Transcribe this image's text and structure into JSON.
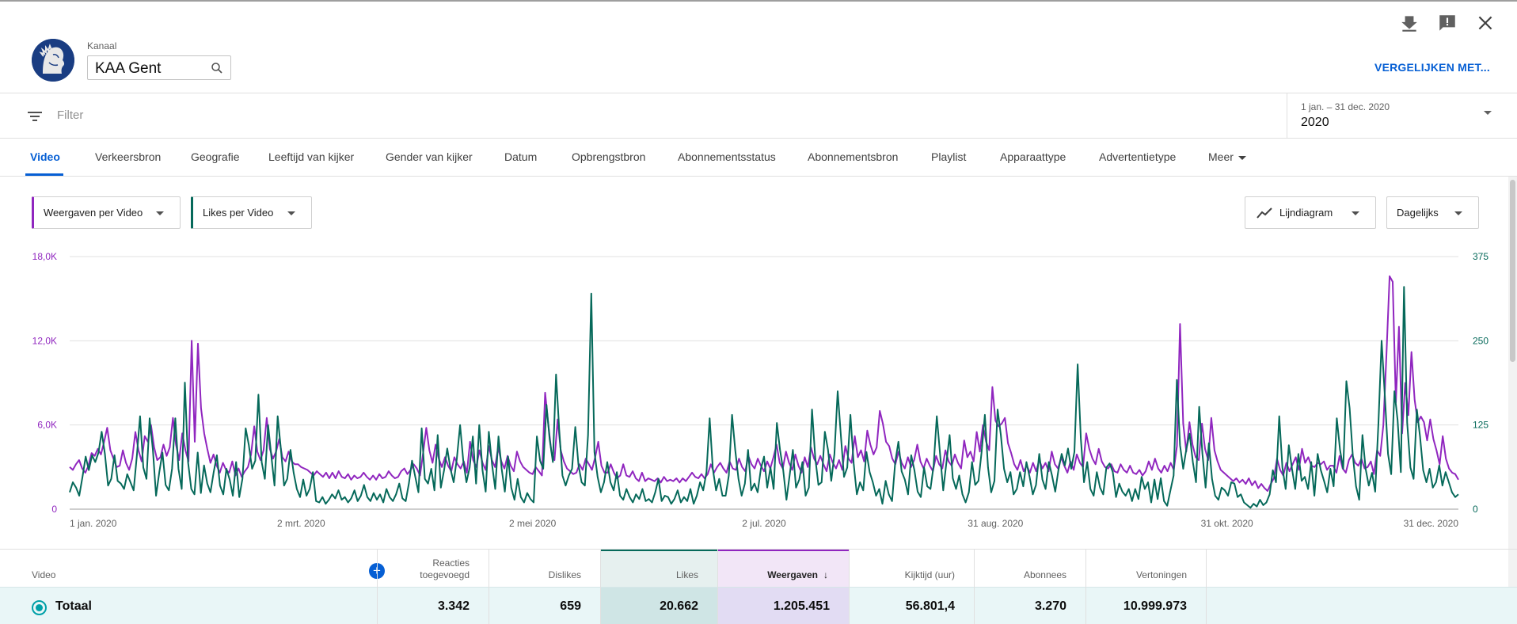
{
  "header": {
    "channel_label": "Kanaal",
    "channel_name": "KAA Gent",
    "compare_label": "VERGELIJKEN MET...",
    "icons": [
      "download-icon",
      "feedback-icon",
      "close-icon"
    ]
  },
  "filter": {
    "placeholder": "Filter",
    "date_range": "1 jan. – 31 dec. 2020",
    "date_value": "2020"
  },
  "tabs": [
    {
      "label": "Video",
      "active": true
    },
    {
      "label": "Verkeersbron"
    },
    {
      "label": "Geografie"
    },
    {
      "label": "Leeftijd van kijker"
    },
    {
      "label": "Gender van kijker"
    },
    {
      "label": "Datum"
    },
    {
      "label": "Opbrengstbron"
    },
    {
      "label": "Abonnementsstatus"
    },
    {
      "label": "Abonnementsbron"
    },
    {
      "label": "Playlist"
    },
    {
      "label": "Apparaattype"
    },
    {
      "label": "Advertentietype"
    },
    {
      "label": "Meer"
    }
  ],
  "controls": {
    "metric1": "Weergaven per Video",
    "metric2": "Likes per Video",
    "chart_type": "Lijndiagram",
    "period": "Dagelijks"
  },
  "colors": {
    "views": "#9026bf",
    "likes": "#06695a",
    "accent": "#065fd4"
  },
  "chart_data": {
    "type": "line",
    "x_tick_labels": [
      "1 jan. 2020",
      "2 mrt. 2020",
      "2 mei 2020",
      "2 jul. 2020",
      "31 aug. 2020",
      "31 okt. 2020",
      "31 dec. 2020"
    ],
    "y_left_ticks": [
      "0",
      "6,0K",
      "12,0K",
      "18,0K"
    ],
    "y_left_range": [
      0,
      18000
    ],
    "y_right_ticks": [
      "0",
      "125",
      "250",
      "375"
    ],
    "y_right_range": [
      0,
      375
    ],
    "grid": true,
    "series": [
      {
        "axis": "left",
        "values": [
          3000,
          2800,
          3200,
          3500,
          2900,
          2600,
          3100,
          4000,
          3800,
          4300,
          3900,
          4800,
          5800,
          4200,
          3600,
          3000,
          3100,
          4200,
          3300,
          2800,
          3600,
          5500,
          4200,
          3400,
          5200,
          4800,
          6000,
          4400,
          3500,
          3700,
          4600,
          3800,
          4400,
          6500,
          4600,
          3500,
          5400,
          4200,
          3400,
          12000,
          4800,
          11800,
          7200,
          5400,
          4300,
          3300,
          3900,
          3100,
          2600,
          3300,
          2800,
          2600,
          3400,
          2400,
          2900,
          2300,
          2700,
          3000,
          3900,
          5900,
          4100,
          3500,
          4200,
          6500,
          4300,
          3600,
          4100,
          5000,
          3700,
          3400,
          4100,
          3400,
          3200,
          3200,
          3000,
          2900,
          2800,
          2600,
          2400,
          2700,
          2500,
          2300,
          2600,
          2200,
          2600,
          2200,
          2700,
          2300,
          2200,
          2500,
          2100,
          2400,
          2200,
          2300,
          2600,
          2300,
          2100,
          2400,
          2100,
          2500,
          2200,
          2300,
          2700,
          2400,
          2200,
          2300,
          2700,
          2900,
          2500,
          2800,
          3200,
          2900,
          2400,
          4000,
          5800,
          4200,
          3300,
          4600,
          3600,
          3000,
          3700,
          3100,
          2700,
          3700,
          3200,
          2900,
          3400,
          2600,
          4800,
          3500,
          3000,
          4200,
          3300,
          2800,
          4500,
          3500,
          3000,
          4400,
          3400,
          2900,
          3800,
          3100,
          2700,
          4100,
          3400,
          3000,
          2800,
          2600,
          2500,
          3000,
          2700,
          2400,
          8300,
          6100,
          4100,
          3500,
          6400,
          4200,
          3400,
          2900,
          2700,
          2500,
          2600,
          3200,
          2800,
          3600,
          3200,
          2800,
          3700,
          4800,
          3100,
          2600,
          2600,
          3200,
          2600,
          2200,
          2400,
          3200,
          2400,
          2300,
          2700,
          2200,
          2000,
          2600,
          2000,
          2200,
          2100,
          2000,
          2200,
          1900,
          2300,
          2000,
          2100,
          2000,
          2200,
          1900,
          2200,
          2000,
          2300,
          2600,
          2300,
          2200,
          2500,
          2200,
          2500,
          3200,
          2600,
          3000,
          3300,
          2900,
          2600,
          3400,
          2900,
          2800,
          3600,
          3000,
          2700,
          3800,
          3200,
          2900,
          3600,
          3100,
          2700,
          3400,
          2900,
          3700,
          4600,
          3300,
          2900,
          4100,
          3300,
          2800,
          3900,
          3100,
          2600,
          3700,
          3000,
          4400,
          3600,
          3200,
          3800,
          3200,
          2700,
          3900,
          3300,
          2900,
          3500,
          2800,
          4500,
          3600,
          3300,
          5200,
          3700,
          4200,
          3400,
          5600,
          4600,
          3900,
          4400,
          7000,
          6100,
          4800,
          4500,
          3600,
          3200,
          4100,
          3300,
          2900,
          3700,
          3000,
          3500,
          4600,
          3400,
          2900,
          3600,
          3100,
          2700,
          3800,
          3200,
          2900,
          4200,
          3400,
          3100,
          3900,
          3300,
          2900,
          4900,
          3700,
          4100,
          3400,
          5500,
          4100,
          6000,
          4800,
          4200,
          8700,
          6300,
          5900,
          6100,
          6500,
          4700,
          4000,
          3200,
          2800,
          3500,
          2700,
          3100,
          2600,
          3300,
          2700,
          3500,
          2900,
          3300,
          2700,
          4100,
          3200,
          2900,
          3700,
          3100,
          2600,
          3400,
          2800,
          3900,
          3300,
          3000,
          5400,
          4300,
          3600,
          3200,
          4300,
          3400,
          3000,
          2900,
          3200,
          2700,
          2600,
          3200,
          2800,
          2600,
          3100,
          2600,
          2500,
          2800,
          2400,
          2700,
          3400,
          2800,
          3600,
          2900,
          2600,
          3100,
          2700,
          3300,
          2800,
          4500,
          13200,
          6100,
          4100,
          6200,
          4600,
          3700,
          3500,
          6100,
          4300,
          3500,
          6500,
          4200,
          3400,
          2800,
          2600,
          2400,
          2200,
          2000,
          2200,
          1900,
          2100,
          1800,
          2200,
          1700,
          2000,
          1500,
          1800,
          1500,
          1300,
          1800,
          2200,
          3600,
          2800,
          2400,
          3300,
          2700,
          3200,
          3700,
          2800,
          4300,
          3300,
          3700,
          3100,
          3000,
          3300,
          3200,
          3400,
          2800,
          3100,
          3100,
          2600,
          3800,
          2900,
          2600,
          3500,
          3900,
          3300,
          3100,
          3600,
          2900,
          3000,
          3400,
          2500,
          4200,
          3800,
          6000,
          11000,
          16600,
          16200,
          7600,
          13000,
          5400,
          9000,
          6700,
          11200,
          7800,
          6200,
          6600,
          6200,
          4900,
          6400,
          5000,
          4200,
          3200,
          5200,
          3600,
          2900,
          2600,
          2500,
          2100
        ]
      },
      {
        "axis": "right",
        "values": [
          25,
          40,
          32,
          20,
          48,
          78,
          58,
          80,
          70,
          84,
          115,
          82,
          35,
          45,
          80,
          42,
          38,
          30,
          52,
          40,
          28,
          80,
          138,
          62,
          45,
          135,
          88,
          20,
          55,
          84,
          36,
          28,
          60,
          135,
          60,
          30,
          188,
          70,
          30,
          22,
          84,
          24,
          65,
          38,
          25,
          55,
          80,
          35,
          22,
          60,
          44,
          20,
          70,
          18,
          45,
          120,
          95,
          60,
          72,
          170,
          70,
          45,
          125,
          80,
          35,
          138,
          90,
          35,
          45,
          88,
          54,
          30,
          18,
          44,
          20,
          30,
          55,
          12,
          10,
          18,
          8,
          14,
          22,
          16,
          28,
          14,
          18,
          10,
          16,
          28,
          12,
          20,
          36,
          18,
          12,
          24,
          14,
          22,
          10,
          30,
          18,
          12,
          22,
          38,
          16,
          12,
          38,
          72,
          48,
          25,
          120,
          45,
          38,
          60,
          28,
          110,
          32,
          58,
          90,
          60,
          40,
          75,
          125,
          72,
          40,
          62,
          108,
          38,
          125,
          58,
          26,
          115,
          66,
          30,
          108,
          60,
          26,
          78,
          32,
          14,
          45,
          18,
          10,
          24,
          15,
          10,
          108,
          72,
          60,
          155,
          104,
          70,
          200,
          118,
          50,
          35,
          50,
          60,
          122,
          66,
          40,
          35,
          110,
          320,
          85,
          48,
          25,
          40,
          70,
          40,
          28,
          55,
          20,
          14,
          30,
          18,
          10,
          22,
          15,
          30,
          12,
          15,
          10,
          25,
          45,
          12,
          20,
          18,
          8,
          15,
          28,
          10,
          18,
          12,
          30,
          8,
          20,
          40,
          28,
          55,
          135,
          60,
          28,
          45,
          20,
          20,
          50,
          140,
          88,
          45,
          20,
          38,
          88,
          28,
          38,
          25,
          60,
          78,
          32,
          62,
          30,
          128,
          88,
          58,
          14,
          50,
          88,
          32,
          44,
          70,
          20,
          32,
          148,
          76,
          36,
          40,
          115,
          88,
          42,
          82,
          175,
          110,
          48,
          62,
          140,
          68,
          22,
          40,
          28,
          85,
          55,
          40,
          20,
          30,
          8,
          42,
          22,
          12,
          70,
          100,
          56,
          44,
          22,
          80,
          58,
          26,
          18,
          62,
          34,
          30,
          65,
          138,
          82,
          28,
          70,
          110,
          46,
          30,
          50,
          22,
          10,
          25,
          70,
          36,
          42,
          85,
          140,
          62,
          25,
          42,
          148,
          110,
          60,
          40,
          55,
          22,
          30,
          55,
          34,
          70,
          48,
          22,
          36,
          82,
          44,
          30,
          70,
          50,
          26,
          58,
          82,
          65,
          90,
          60,
          85,
          215,
          105,
          40,
          70,
          30,
          20,
          55,
          32,
          22,
          62,
          68,
          55,
          18,
          38,
          26,
          20,
          30,
          12,
          30,
          15,
          48,
          30,
          40,
          10,
          44,
          15,
          46,
          12,
          5,
          28,
          50,
          192,
          95,
          60,
          90,
          112,
          70,
          40,
          152,
          82,
          32,
          98,
          45,
          20,
          14,
          32,
          28,
          20,
          40,
          38,
          18,
          22,
          10,
          6,
          2,
          8,
          4,
          14,
          6,
          10,
          22,
          58,
          40,
          138,
          62,
          30,
          95,
          60,
          30,
          82,
          42,
          48,
          30,
          70,
          20,
          82,
          58,
          42,
          25,
          60,
          34,
          135,
          88,
          60,
          190,
          150,
          80,
          34,
          14,
          110,
          60,
          35,
          54,
          26,
          128,
          250,
          170,
          82,
          52,
          175,
          132,
          55,
          330,
          128,
          62,
          45,
          148,
          108,
          58,
          40,
          60,
          32,
          40,
          65,
          35,
          55,
          40,
          25,
          18,
          22
        ]
      }
    ]
  },
  "table": {
    "columns": [
      {
        "key": "video",
        "label": "Video"
      },
      {
        "key": "reacties",
        "label": "Reacties toegevoegd",
        "lines": [
          "Reacties",
          "toegevoegd"
        ]
      },
      {
        "key": "dislikes",
        "label": "Dislikes"
      },
      {
        "key": "likes",
        "label": "Likes"
      },
      {
        "key": "weergaven",
        "label": "Weergaven",
        "sort": "↓"
      },
      {
        "key": "kijktijd",
        "label": "Kijktijd (uur)"
      },
      {
        "key": "abonnees",
        "label": "Abonnees"
      },
      {
        "key": "vertoningen",
        "label": "Vertoningen"
      }
    ],
    "total_row": {
      "label": "Totaal",
      "reacties": "3.342",
      "dislikes": "659",
      "likes": "20.662",
      "weergaven": "1.205.451",
      "kijktijd": "56.801,4",
      "abonnees": "3.270",
      "vertoningen": "10.999.973"
    },
    "add_column_symbol": "+"
  }
}
